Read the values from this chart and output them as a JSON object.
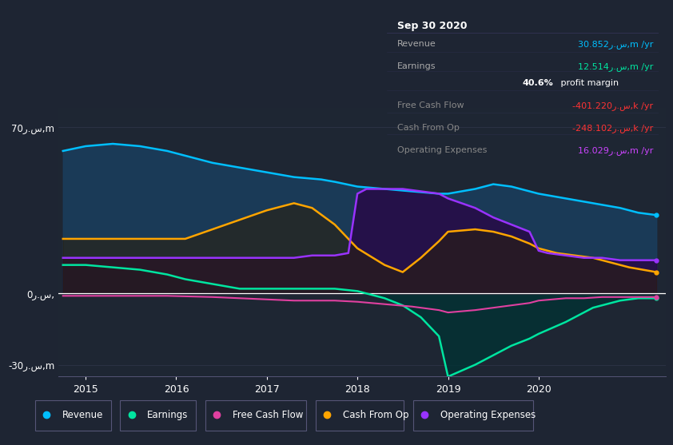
{
  "bg_color": "#1e2533",
  "plot_bg_color": "#1e2633",
  "ylim": [
    -35,
    78
  ],
  "xlim": [
    2014.7,
    2021.4
  ],
  "ytick_positions": [
    -30,
    0,
    70
  ],
  "ytick_labels": [
    "-30ر.س,m",
    "0ر.س,",
    "70ر.س,m"
  ],
  "xticks": [
    2015,
    2016,
    2017,
    2018,
    2019,
    2020
  ],
  "legend_items": [
    {
      "label": "Revenue",
      "color": "#00bfff"
    },
    {
      "label": "Earnings",
      "color": "#00e5a0"
    },
    {
      "label": "Free Cash Flow",
      "color": "#e040a0"
    },
    {
      "label": "Cash From Op",
      "color": "#ffa500"
    },
    {
      "label": "Operating Expenses",
      "color": "#9933ff"
    }
  ],
  "infobox_title": "Sep 30 2020",
  "infobox_rows": [
    {
      "label": "Revenue",
      "value": "30.852ر.س,m /yr",
      "value_color": "#00bfff",
      "label_color": "#aaaaaa"
    },
    {
      "label": "Earnings",
      "value": "12.514ر.س,m /yr",
      "value_color": "#00e5a0",
      "label_color": "#aaaaaa"
    },
    {
      "label": "",
      "value": "40.6% profit margin",
      "value_color": "#ffffff",
      "bold_prefix": "40.6%",
      "label_color": "#aaaaaa"
    },
    {
      "label": "Free Cash Flow",
      "value": "-401.220ر.س,k /yr",
      "value_color": "#ff3333",
      "label_color": "#888888"
    },
    {
      "label": "Cash From Op",
      "value": "-248.102ر.س,k /yr",
      "value_color": "#ff3333",
      "label_color": "#888888"
    },
    {
      "label": "Operating Expenses",
      "value": "16.029ر.س,m /yr",
      "value_color": "#cc44ff",
      "label_color": "#888888"
    }
  ],
  "revenue_x": [
    2014.75,
    2015.0,
    2015.3,
    2015.6,
    2015.9,
    2016.1,
    2016.4,
    2016.7,
    2017.0,
    2017.3,
    2017.6,
    2017.75,
    2018.0,
    2018.3,
    2018.6,
    2018.9,
    2019.0,
    2019.3,
    2019.5,
    2019.7,
    2019.9,
    2020.0,
    2020.3,
    2020.6,
    2020.9,
    2021.1,
    2021.3
  ],
  "revenue_y": [
    60,
    62,
    63,
    62,
    60,
    58,
    55,
    53,
    51,
    49,
    48,
    47,
    45,
    44,
    43,
    42,
    42,
    44,
    46,
    45,
    43,
    42,
    40,
    38,
    36,
    34,
    33
  ],
  "earnings_x": [
    2014.75,
    2015.0,
    2015.3,
    2015.6,
    2015.9,
    2016.1,
    2016.4,
    2016.7,
    2017.0,
    2017.3,
    2017.5,
    2017.75,
    2018.0,
    2018.1,
    2018.3,
    2018.5,
    2018.7,
    2018.9,
    2019.0,
    2019.3,
    2019.5,
    2019.7,
    2019.9,
    2020.0,
    2020.3,
    2020.6,
    2020.9,
    2021.1,
    2021.3
  ],
  "earnings_y": [
    12,
    12,
    11,
    10,
    8,
    6,
    4,
    2,
    2,
    2,
    2,
    2,
    1,
    0,
    -2,
    -5,
    -10,
    -18,
    -35,
    -30,
    -26,
    -22,
    -19,
    -17,
    -12,
    -6,
    -3,
    -2,
    -2
  ],
  "fcf_x": [
    2014.75,
    2015.0,
    2015.3,
    2015.6,
    2015.9,
    2016.1,
    2016.4,
    2016.7,
    2017.0,
    2017.3,
    2017.6,
    2017.75,
    2018.0,
    2018.3,
    2018.6,
    2018.9,
    2019.0,
    2019.3,
    2019.5,
    2019.7,
    2019.9,
    2020.0,
    2020.3,
    2020.5,
    2020.7,
    2020.9,
    2021.1,
    2021.3
  ],
  "fcf_y": [
    -1.0,
    -1.0,
    -1.0,
    -1.0,
    -1.0,
    -1.2,
    -1.5,
    -2.0,
    -2.5,
    -3.0,
    -3.0,
    -3.0,
    -3.5,
    -4.5,
    -5.5,
    -7.0,
    -8.0,
    -7.0,
    -6.0,
    -5.0,
    -4.0,
    -3.0,
    -2.0,
    -2.0,
    -1.5,
    -1.5,
    -1.5,
    -1.5
  ],
  "cashop_x": [
    2014.75,
    2015.0,
    2015.3,
    2015.6,
    2015.9,
    2016.1,
    2016.4,
    2016.7,
    2017.0,
    2017.3,
    2017.5,
    2017.75,
    2018.0,
    2018.3,
    2018.5,
    2018.7,
    2018.9,
    2019.0,
    2019.3,
    2019.5,
    2019.7,
    2019.9,
    2020.0,
    2020.2,
    2020.4,
    2020.6,
    2020.8,
    2021.0,
    2021.3
  ],
  "cashop_y": [
    23,
    23,
    23,
    23,
    23,
    23,
    27,
    31,
    35,
    38,
    36,
    29,
    19,
    12,
    9,
    15,
    22,
    26,
    27,
    26,
    24,
    21,
    19,
    17,
    16,
    15,
    13,
    11,
    9
  ],
  "opex_x": [
    2014.75,
    2015.0,
    2015.3,
    2015.6,
    2015.9,
    2016.0,
    2016.1,
    2016.2,
    2016.4,
    2016.7,
    2017.0,
    2017.1,
    2017.3,
    2017.5,
    2017.75,
    2017.9,
    2018.0,
    2018.1,
    2018.3,
    2018.5,
    2018.7,
    2018.9,
    2019.0,
    2019.3,
    2019.5,
    2019.7,
    2019.9,
    2020.0,
    2020.1,
    2020.3,
    2020.5,
    2020.7,
    2020.9,
    2021.1,
    2021.3
  ],
  "opex_y": [
    15,
    15,
    15,
    15,
    15,
    15,
    15,
    15,
    15,
    15,
    15,
    15,
    15,
    16,
    16,
    17,
    42,
    44,
    44,
    44,
    43,
    42,
    40,
    36,
    32,
    29,
    26,
    18,
    17,
    16,
    15,
    15,
    14,
    14,
    14
  ],
  "rev_fill_color": "#1a3d5c",
  "earn_fill_color": "#003333",
  "opex_fill_color": "#2a0044",
  "cashop_fill_color": "#2a2010"
}
